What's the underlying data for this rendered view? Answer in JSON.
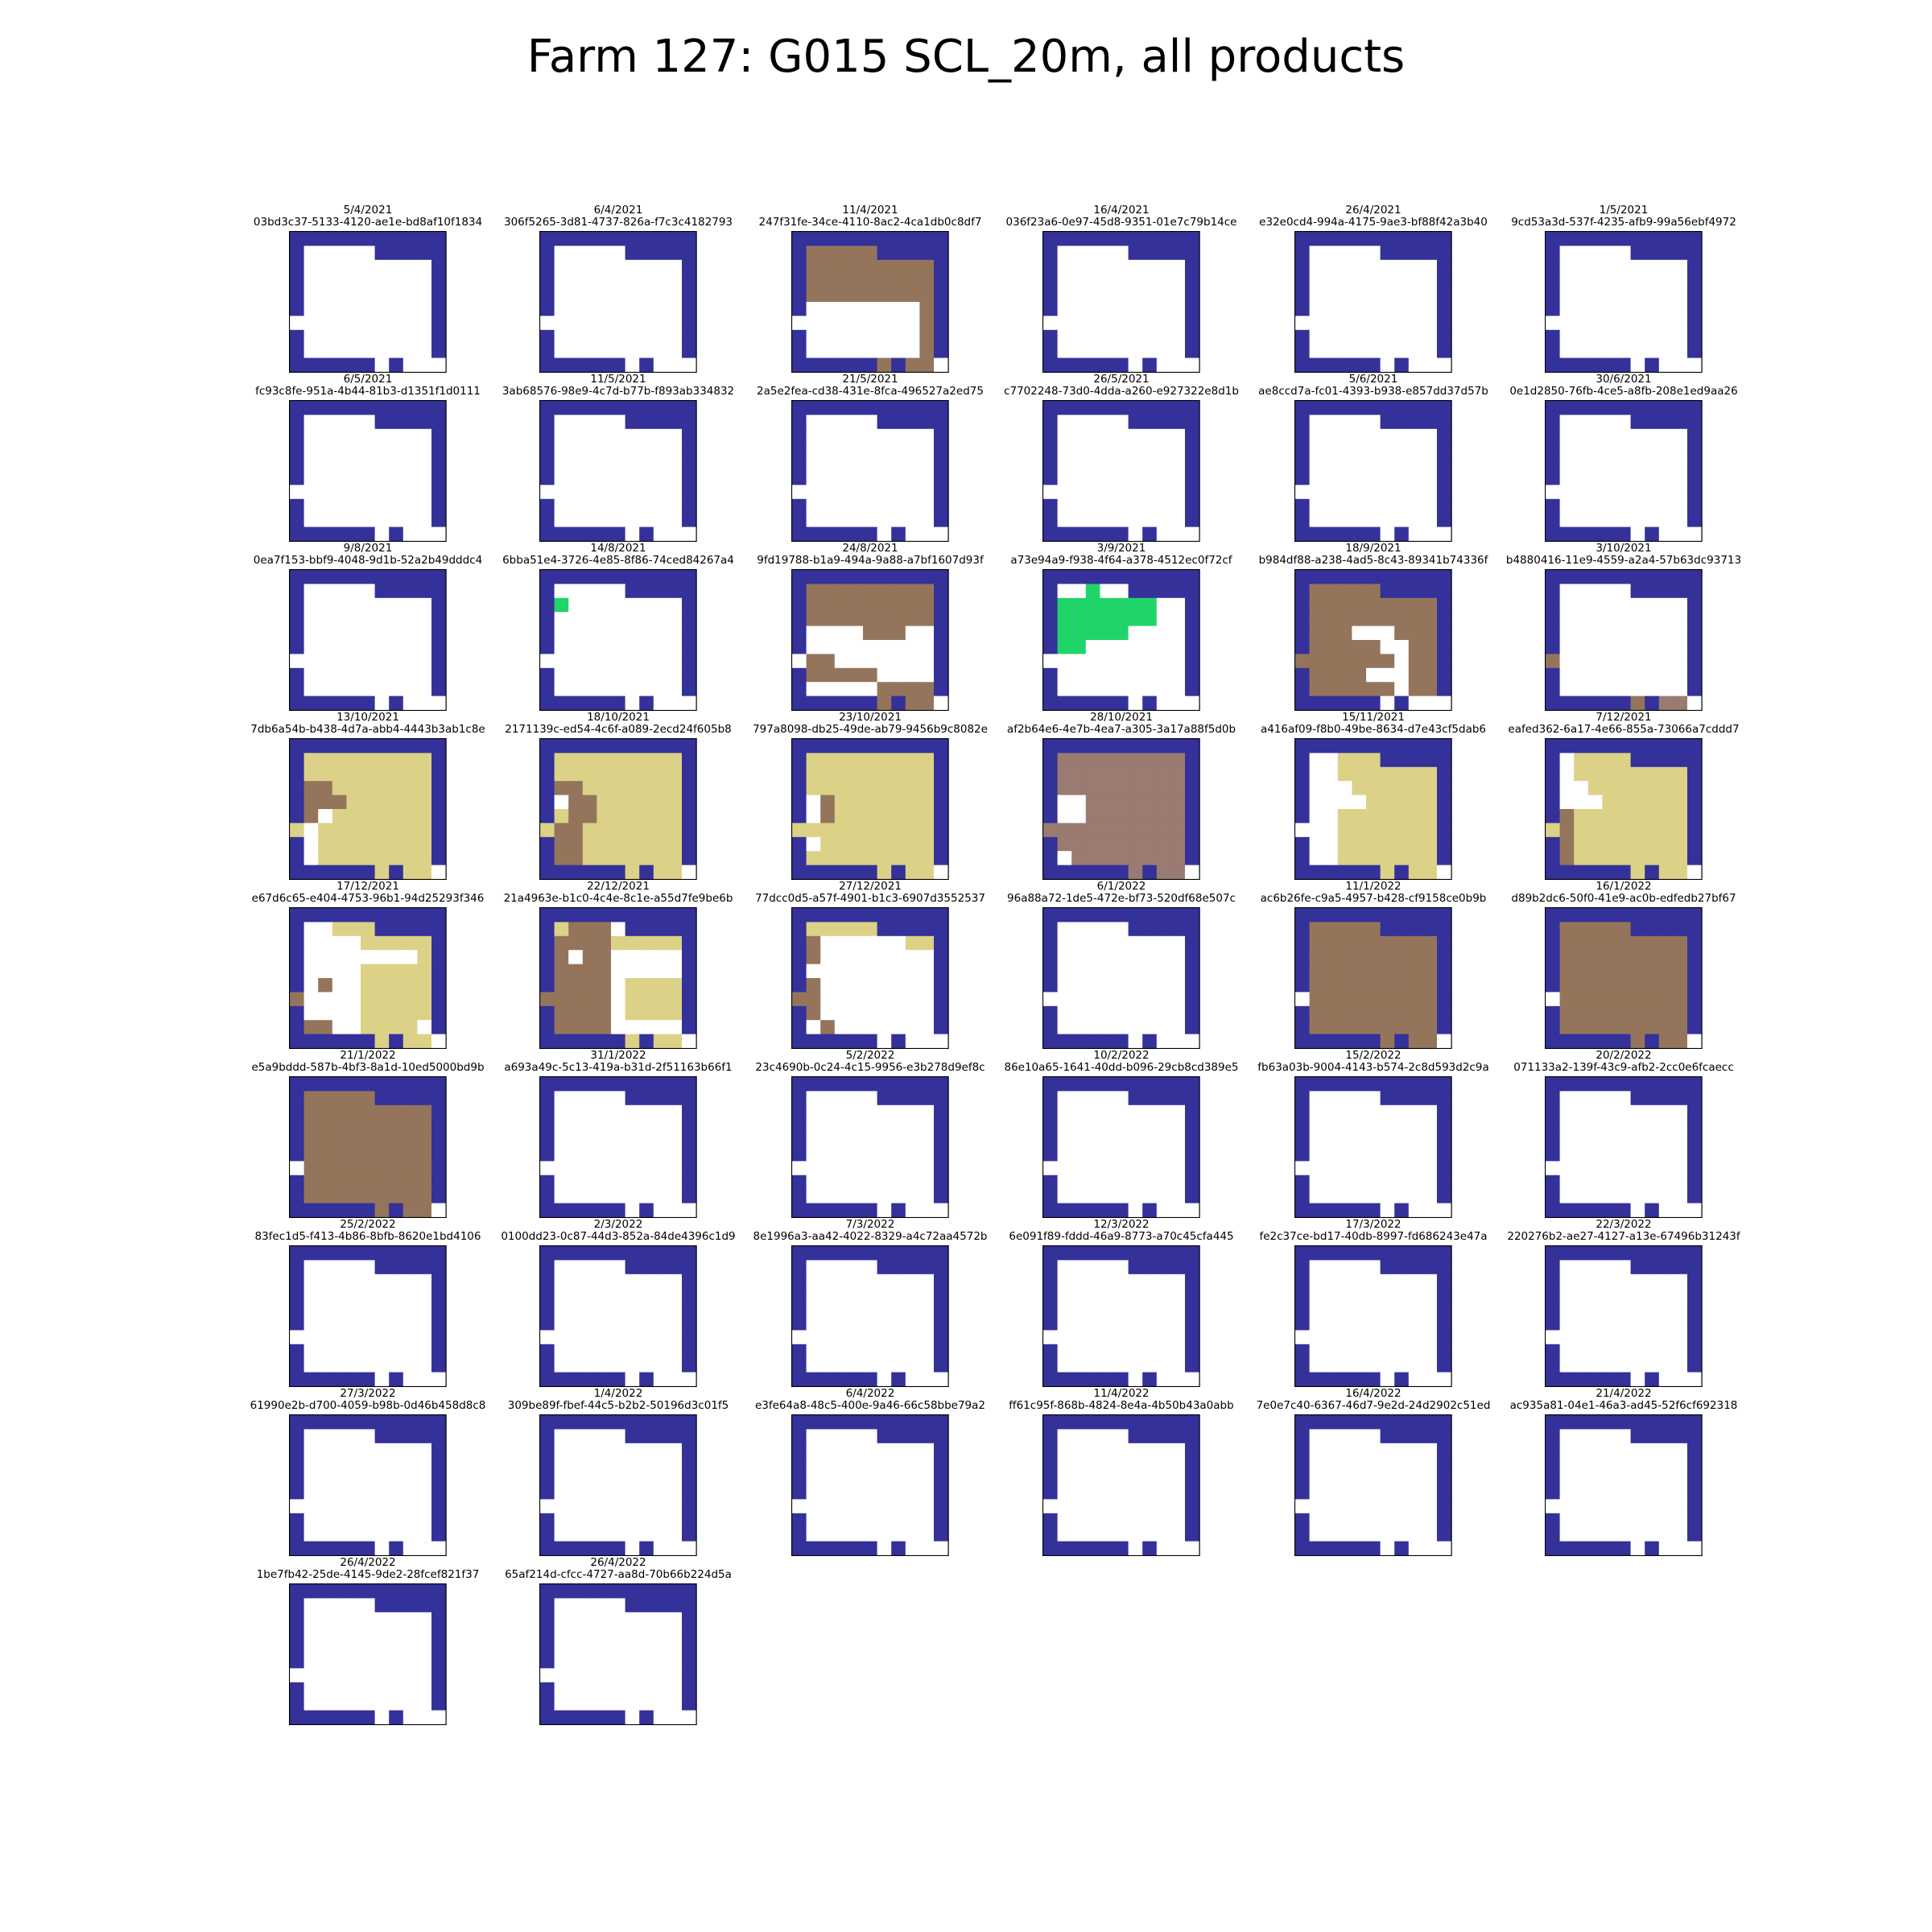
{
  "title": "Farm 127: G015 SCL_20m, all products",
  "colors": {
    "0": "#ffffff",
    "1": "#34319a",
    "2": "#94755b",
    "3": "#21d46a",
    "4": "#dbd288",
    "5": "#9a7b71"
  },
  "legend_hint": "cell values: 0 white, 1 navy (no data), 2 brown, 3 green, 4 khaki, 5 mauve",
  "chart_data": {
    "type": "heatmap",
    "rows": 10,
    "cols": 11,
    "masks": {
      "base": [
        "11111111111",
        "10000011111",
        "10000000001",
        "10000000001",
        "10000000001",
        "10000000001",
        "00000000001",
        "10000000001",
        "10000000001",
        "11111101000"
      ]
    },
    "panels": [
      {
        "date": "5/4/2021",
        "id": "03bd3c37-5133-4120-ae1e-bd8af10f1834",
        "base": "base",
        "rect": []
      },
      {
        "date": "6/4/2021",
        "id": "306f5265-3d81-4737-826a-f7c3c4182793",
        "base": "base",
        "rect": []
      },
      {
        "date": "11/4/2021",
        "id": "247f31fe-34ce-4110-8ac2-4ca1db0c8df7",
        "base": "base",
        "rect": [
          [
            1,
            1,
            1,
            5,
            2
          ],
          [
            2,
            1,
            4,
            9,
            2
          ],
          [
            4,
            6,
            4,
            8,
            2
          ],
          [
            5,
            9,
            9,
            9,
            2
          ],
          [
            9,
            6,
            9,
            6,
            2
          ],
          [
            9,
            8,
            9,
            9,
            2
          ]
        ]
      },
      {
        "date": "16/4/2021",
        "id": "036f23a6-0e97-45d8-9351-01e7c79b14ce",
        "base": "base",
        "rect": []
      },
      {
        "date": "26/4/2021",
        "id": "e32e0cd4-994a-4175-9ae3-bf88f42a3b40",
        "base": "base",
        "rect": []
      },
      {
        "date": "1/5/2021",
        "id": "9cd53a3d-537f-4235-afb9-99a56ebf4972",
        "base": "base",
        "rect": []
      },
      {
        "date": "6/5/2021",
        "id": "fc93c8fe-951a-4b44-81b3-d1351f1d0111",
        "base": "base",
        "rect": []
      },
      {
        "date": "11/5/2021",
        "id": "3ab68576-98e9-4c7d-b77b-f893ab334832",
        "base": "base",
        "rect": []
      },
      {
        "date": "21/5/2021",
        "id": "2a5e2fea-cd38-431e-8fca-496527a2ed75",
        "base": "base",
        "rect": []
      },
      {
        "date": "26/5/2021",
        "id": "c7702248-73d0-4dda-a260-e927322e8d1b",
        "base": "base",
        "rect": []
      },
      {
        "date": "5/6/2021",
        "id": "ae8ccd7a-fc01-4393-b938-e857dd37d57b",
        "base": "base",
        "rect": []
      },
      {
        "date": "30/6/2021",
        "id": "0e1d2850-76fb-4ce5-a8fb-208e1ed9aa26",
        "base": "base",
        "rect": []
      },
      {
        "date": "9/8/2021",
        "id": "0ea7f153-bbf9-4048-9d1b-52a2b49dddc4",
        "base": "base",
        "rect": []
      },
      {
        "date": "14/8/2021",
        "id": "6bba51e4-3726-4e85-8f86-74ced84267a4",
        "base": "base",
        "rect": [
          [
            2,
            1,
            2,
            1,
            3
          ]
        ]
      },
      {
        "date": "24/8/2021",
        "id": "9fd19788-b1a9-494a-9a88-a7bf1607d93f",
        "base": "base",
        "rect": [
          [
            1,
            1,
            4,
            9,
            2
          ],
          [
            4,
            1,
            4,
            4,
            0
          ],
          [
            4,
            8,
            4,
            9,
            0
          ],
          [
            5,
            5,
            5,
            9,
            0
          ],
          [
            6,
            1,
            7,
            2,
            2
          ],
          [
            7,
            3,
            7,
            5,
            2
          ],
          [
            8,
            6,
            8,
            9,
            2
          ],
          [
            9,
            6,
            9,
            6,
            2
          ],
          [
            9,
            8,
            9,
            9,
            2
          ]
        ]
      },
      {
        "date": "3/9/2021",
        "id": "a73e94a9-f938-4f64-a378-4512ec0f72cf",
        "base": "base",
        "rect": [
          [
            1,
            3,
            1,
            3,
            3
          ],
          [
            2,
            1,
            2,
            7,
            3
          ],
          [
            3,
            1,
            3,
            7,
            3
          ],
          [
            4,
            1,
            4,
            5,
            3
          ],
          [
            5,
            1,
            5,
            2,
            3
          ]
        ]
      },
      {
        "date": "18/9/2021",
        "id": "b984df88-a238-4ad5-8c43-89341b74336f",
        "base": "base",
        "rect": [
          [
            1,
            1,
            1,
            5,
            2
          ],
          [
            2,
            1,
            8,
            9,
            2
          ],
          [
            4,
            4,
            4,
            6,
            0
          ],
          [
            5,
            6,
            5,
            7,
            0
          ],
          [
            6,
            7,
            7,
            7,
            0
          ],
          [
            7,
            5,
            7,
            6,
            0
          ],
          [
            8,
            7,
            8,
            7,
            0
          ],
          [
            6,
            0,
            6,
            0,
            2
          ]
        ]
      },
      {
        "date": "3/10/2021",
        "id": "b4880416-11e9-4559-a2a4-57b63dc93713",
        "base": "base",
        "rect": [
          [
            6,
            0,
            6,
            0,
            2
          ],
          [
            9,
            6,
            9,
            6,
            2
          ],
          [
            9,
            8,
            9,
            9,
            5
          ]
        ]
      },
      {
        "date": "13/10/2021",
        "id": "7db6a54b-b438-4d7a-abb4-4443b3ab1c8e",
        "base": "base",
        "rect": [
          [
            1,
            1,
            8,
            9,
            4
          ],
          [
            3,
            1,
            3,
            2,
            2
          ],
          [
            4,
            1,
            4,
            3,
            2
          ],
          [
            5,
            1,
            5,
            1,
            2
          ],
          [
            5,
            2,
            5,
            2,
            0
          ],
          [
            6,
            1,
            8,
            1,
            0
          ],
          [
            6,
            0,
            6,
            0,
            4
          ],
          [
            9,
            6,
            9,
            6,
            4
          ],
          [
            9,
            8,
            9,
            9,
            4
          ]
        ]
      },
      {
        "date": "18/10/2021",
        "id": "2171139c-ed54-4c6f-a089-2ecd24f605b8",
        "base": "base",
        "rect": [
          [
            1,
            1,
            8,
            9,
            4
          ],
          [
            3,
            1,
            3,
            2,
            2
          ],
          [
            4,
            2,
            5,
            3,
            2
          ],
          [
            4,
            1,
            4,
            1,
            0
          ],
          [
            6,
            1,
            8,
            2,
            2
          ],
          [
            6,
            0,
            6,
            0,
            4
          ],
          [
            9,
            6,
            9,
            6,
            4
          ],
          [
            9,
            8,
            9,
            9,
            4
          ]
        ]
      },
      {
        "date": "23/10/2021",
        "id": "797a8098-db25-49de-ab79-9456b9c8082e",
        "base": "base",
        "rect": [
          [
            1,
            1,
            8,
            9,
            4
          ],
          [
            4,
            2,
            5,
            2,
            2
          ],
          [
            4,
            1,
            5,
            1,
            0
          ],
          [
            7,
            1,
            7,
            1,
            0
          ],
          [
            6,
            0,
            6,
            0,
            4
          ],
          [
            9,
            6,
            9,
            6,
            4
          ],
          [
            9,
            8,
            9,
            9,
            4
          ]
        ]
      },
      {
        "date": "28/10/2021",
        "id": "af2b64e6-4e7b-4ea7-a305-3a17a88f5d0b",
        "base": "base",
        "rect": [
          [
            1,
            1,
            8,
            9,
            5
          ],
          [
            4,
            1,
            5,
            2,
            0
          ],
          [
            8,
            1,
            8,
            1,
            0
          ],
          [
            6,
            0,
            6,
            0,
            5
          ],
          [
            9,
            6,
            9,
            6,
            5
          ],
          [
            9,
            8,
            9,
            9,
            5
          ]
        ]
      },
      {
        "date": "15/11/2021",
        "id": "a416af09-f8b0-49be-8634-d7e43cf5dab6",
        "base": "base",
        "rect": [
          [
            1,
            3,
            1,
            5,
            4
          ],
          [
            2,
            3,
            8,
            9,
            4
          ],
          [
            3,
            3,
            4,
            3,
            0
          ],
          [
            4,
            4,
            4,
            4,
            0
          ],
          [
            6,
            0,
            6,
            0,
            0
          ],
          [
            9,
            6,
            9,
            6,
            4
          ],
          [
            9,
            8,
            9,
            9,
            4
          ]
        ]
      },
      {
        "date": "7/12/2021",
        "id": "eafed362-6a17-4e66-855a-73066a7cddd7",
        "base": "base",
        "rect": [
          [
            1,
            2,
            1,
            5,
            4
          ],
          [
            2,
            2,
            8,
            9,
            4
          ],
          [
            3,
            1,
            3,
            2,
            0
          ],
          [
            4,
            1,
            4,
            3,
            0
          ],
          [
            5,
            1,
            7,
            1,
            2
          ],
          [
            6,
            0,
            6,
            0,
            4
          ],
          [
            8,
            1,
            8,
            1,
            2
          ],
          [
            9,
            6,
            9,
            6,
            4
          ],
          [
            9,
            8,
            9,
            9,
            4
          ]
        ]
      },
      {
        "date": "17/12/2021",
        "id": "e67d6c65-e404-4753-96b1-94d25293f346",
        "base": "base",
        "rect": [
          [
            1,
            3,
            1,
            5,
            4
          ],
          [
            2,
            5,
            8,
            9,
            4
          ],
          [
            3,
            5,
            3,
            8,
            0
          ],
          [
            5,
            2,
            5,
            2,
            2
          ],
          [
            6,
            0,
            6,
            0,
            2
          ],
          [
            8,
            1,
            8,
            2,
            2
          ],
          [
            8,
            9,
            8,
            9,
            0
          ],
          [
            9,
            6,
            9,
            6,
            4
          ],
          [
            9,
            8,
            9,
            9,
            4
          ]
        ]
      },
      {
        "date": "22/12/2021",
        "id": "21a4963e-b1c0-4c4e-8c1e-a55d7fe9be6b",
        "base": "base",
        "rect": [
          [
            1,
            1,
            1,
            1,
            4
          ],
          [
            1,
            3,
            1,
            4,
            4
          ],
          [
            1,
            2,
            8,
            4,
            2
          ],
          [
            2,
            1,
            8,
            2,
            2
          ],
          [
            2,
            5,
            2,
            9,
            4
          ],
          [
            3,
            2,
            3,
            2,
            0
          ],
          [
            3,
            6,
            3,
            9,
            0
          ],
          [
            4,
            4,
            5,
            4,
            2
          ],
          [
            5,
            6,
            7,
            9,
            4
          ],
          [
            6,
            0,
            6,
            0,
            2
          ],
          [
            9,
            6,
            9,
            6,
            4
          ],
          [
            9,
            8,
            9,
            9,
            4
          ]
        ]
      },
      {
        "date": "27/12/2021",
        "id": "77dcc0d5-a57f-4901-b1c3-6907d3552537",
        "base": "base",
        "rect": [
          [
            1,
            1,
            1,
            5,
            4
          ],
          [
            2,
            1,
            2,
            1,
            2
          ],
          [
            2,
            8,
            2,
            9,
            4
          ],
          [
            3,
            1,
            3,
            1,
            2
          ],
          [
            5,
            1,
            6,
            1,
            2
          ],
          [
            6,
            0,
            6,
            0,
            2
          ],
          [
            7,
            1,
            7,
            1,
            2
          ],
          [
            8,
            2,
            8,
            2,
            2
          ]
        ]
      },
      {
        "date": "6/1/2022",
        "id": "96a88a72-1de5-472e-bf73-520df68e507c",
        "base": "base",
        "rect": []
      },
      {
        "date": "11/1/2022",
        "id": "ac6b26fe-c9a5-4957-b428-cf9158ce0b9b",
        "base": "base",
        "rect": [
          [
            1,
            1,
            1,
            5,
            2
          ],
          [
            2,
            1,
            8,
            9,
            2
          ],
          [
            9,
            6,
            9,
            6,
            2
          ],
          [
            9,
            8,
            9,
            9,
            2
          ]
        ]
      },
      {
        "date": "16/1/2022",
        "id": "d89b2dc6-50f0-41e9-ac0b-edfedb27bf67",
        "base": "base",
        "rect": [
          [
            1,
            1,
            1,
            5,
            2
          ],
          [
            2,
            1,
            8,
            9,
            2
          ],
          [
            9,
            6,
            9,
            6,
            2
          ],
          [
            9,
            8,
            9,
            9,
            2
          ]
        ]
      },
      {
        "date": "21/1/2022",
        "id": "e5a9bddd-587b-4bf3-8a1d-10ed5000bd9b",
        "base": "base",
        "rect": [
          [
            1,
            1,
            1,
            5,
            2
          ],
          [
            2,
            1,
            8,
            9,
            2
          ],
          [
            9,
            6,
            9,
            6,
            2
          ],
          [
            9,
            8,
            9,
            9,
            2
          ]
        ]
      },
      {
        "date": "31/1/2022",
        "id": "a693a49c-5c13-419a-b31d-2f51163b66f1",
        "base": "base",
        "rect": []
      },
      {
        "date": "5/2/2022",
        "id": "23c4690b-0c24-4c15-9956-e3b278d9ef8c",
        "base": "base",
        "rect": []
      },
      {
        "date": "10/2/2022",
        "id": "86e10a65-1641-40dd-b096-29cb8cd389e5",
        "base": "base",
        "rect": []
      },
      {
        "date": "15/2/2022",
        "id": "fb63a03b-9004-4143-b574-2c8d593d2c9a",
        "base": "base",
        "rect": []
      },
      {
        "date": "20/2/2022",
        "id": "071133a2-139f-43c9-afb2-2cc0e6fcaecc",
        "base": "base",
        "rect": []
      },
      {
        "date": "25/2/2022",
        "id": "83fec1d5-f413-4b86-8bfb-8620e1bd4106",
        "base": "base",
        "rect": []
      },
      {
        "date": "2/3/2022",
        "id": "0100dd23-0c87-44d3-852a-84de4396c1d9",
        "base": "base",
        "rect": []
      },
      {
        "date": "7/3/2022",
        "id": "8e1996a3-aa42-4022-8329-a4c72aa4572b",
        "base": "base",
        "rect": []
      },
      {
        "date": "12/3/2022",
        "id": "6e091f89-fddd-46a9-8773-a70c45cfa445",
        "base": "base",
        "rect": []
      },
      {
        "date": "17/3/2022",
        "id": "fe2c37ce-bd17-40db-8997-fd686243e47a",
        "base": "base",
        "rect": []
      },
      {
        "date": "22/3/2022",
        "id": "220276b2-ae27-4127-a13e-67496b31243f",
        "base": "base",
        "rect": []
      },
      {
        "date": "27/3/2022",
        "id": "61990e2b-d700-4059-b98b-0d46b458d8c8",
        "base": "base",
        "rect": []
      },
      {
        "date": "1/4/2022",
        "id": "309be89f-fbef-44c5-b2b2-50196d3c01f5",
        "base": "base",
        "rect": []
      },
      {
        "date": "6/4/2022",
        "id": "e3fe64a8-48c5-400e-9a46-66c58bbe79a2",
        "base": "base",
        "rect": []
      },
      {
        "date": "11/4/2022",
        "id": "ff61c95f-868b-4824-8e4a-4b50b43a0abb",
        "base": "base",
        "rect": []
      },
      {
        "date": "16/4/2022",
        "id": "7e0e7c40-6367-46d7-9e2d-24d2902c51ed",
        "base": "base",
        "rect": []
      },
      {
        "date": "21/4/2022",
        "id": "ac935a81-04e1-46a3-ad45-52f6cf692318",
        "base": "base",
        "rect": []
      },
      {
        "date": "26/4/2022",
        "id": "1be7fb42-25de-4145-9de2-28fcef821f37",
        "base": "base",
        "rect": []
      },
      {
        "date": "26/4/2022",
        "id": "65af214d-cfcc-4727-aa8d-70b66b224d5a",
        "base": "base",
        "rect": []
      }
    ]
  }
}
